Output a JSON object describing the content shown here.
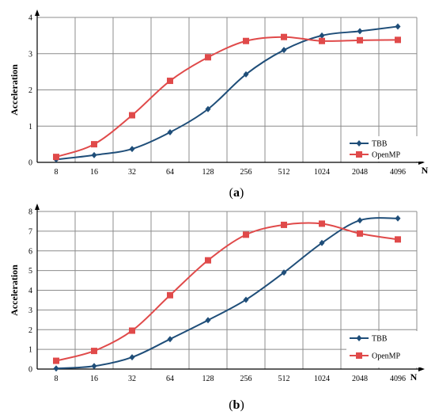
{
  "chart_data": [
    {
      "type": "line",
      "caption_open": "(",
      "caption_letter": "a",
      "caption_close": ")",
      "xlabel": "N",
      "ylabel": "Acceleration",
      "categories": [
        "8",
        "16",
        "32",
        "64",
        "128",
        "256",
        "512",
        "1024",
        "2048",
        "4096"
      ],
      "yticks": [
        "0",
        "1",
        "2",
        "3",
        "4"
      ],
      "ylim": [
        0,
        4
      ],
      "grid": true,
      "legend_position": "bottom-right",
      "series": [
        {
          "name": "TBB",
          "color": "#1f4e79",
          "marker": "diamond",
          "values": [
            0.08,
            0.2,
            0.37,
            0.83,
            1.47,
            2.43,
            3.1,
            3.5,
            3.62,
            3.75
          ]
        },
        {
          "name": "OpenMP",
          "color": "#e04a4a",
          "marker": "square",
          "values": [
            0.15,
            0.5,
            1.3,
            2.25,
            2.9,
            3.35,
            3.46,
            3.35,
            3.37,
            3.38
          ]
        }
      ]
    },
    {
      "type": "line",
      "caption_open": "(",
      "caption_letter": "b",
      "caption_close": ")",
      "xlabel": "N",
      "ylabel": "Acceleration",
      "categories": [
        "8",
        "16",
        "32",
        "64",
        "128",
        "256",
        "512",
        "1024",
        "2048",
        "4096"
      ],
      "yticks": [
        "0",
        "1",
        "2",
        "3",
        "4",
        "5",
        "6",
        "7",
        "8"
      ],
      "ylim": [
        0,
        8
      ],
      "grid": true,
      "legend_position": "bottom-right",
      "series": [
        {
          "name": "TBB",
          "color": "#1f4e79",
          "marker": "diamond",
          "values": [
            0.03,
            0.15,
            0.6,
            1.52,
            2.48,
            3.52,
            4.9,
            6.4,
            7.55,
            7.65
          ]
        },
        {
          "name": "OpenMP",
          "color": "#e04a4a",
          "marker": "square",
          "values": [
            0.42,
            0.92,
            1.95,
            3.75,
            5.52,
            6.82,
            7.32,
            7.38,
            6.88,
            6.58
          ]
        }
      ]
    }
  ]
}
